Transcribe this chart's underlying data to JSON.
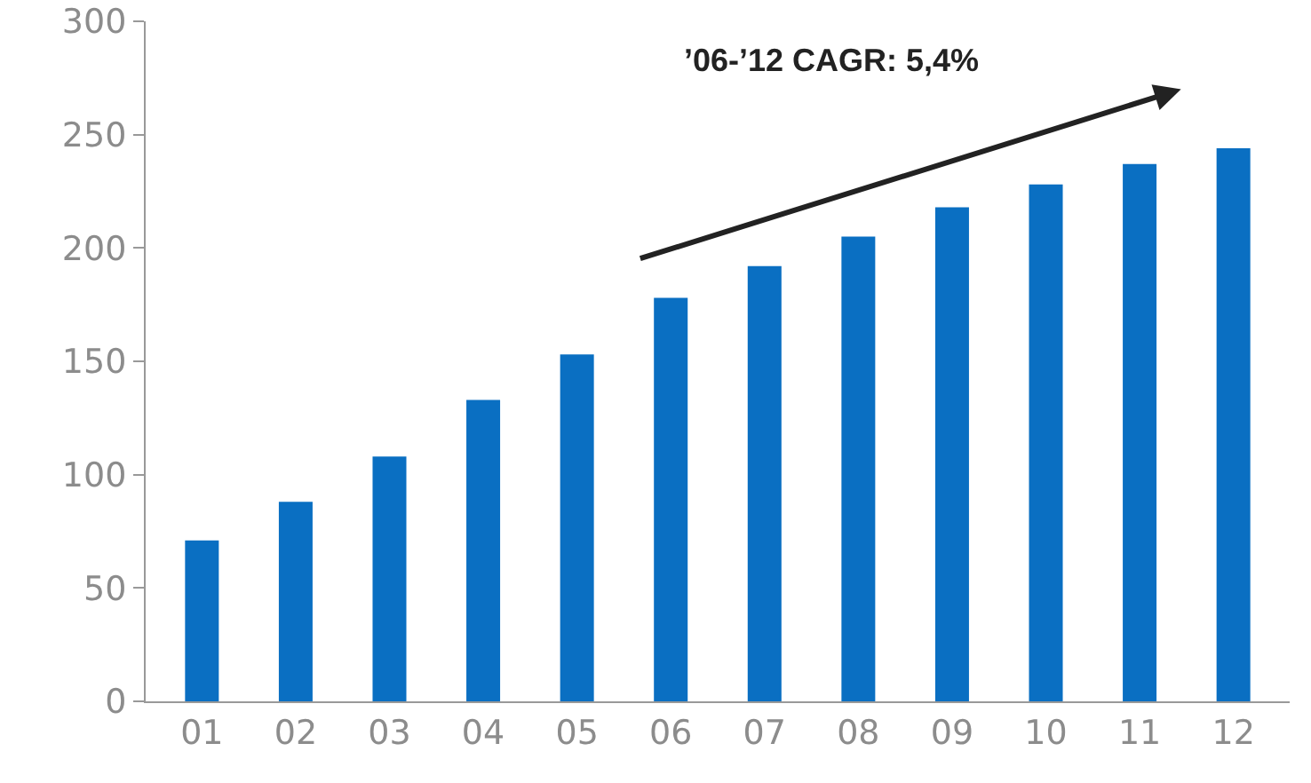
{
  "chart_data": {
    "type": "bar",
    "categories": [
      "01",
      "02",
      "03",
      "04",
      "05",
      "06",
      "07",
      "08",
      "09",
      "10",
      "11",
      "12"
    ],
    "values": [
      71,
      88,
      108,
      133,
      153,
      178,
      192,
      205,
      218,
      228,
      237,
      244
    ],
    "color": "#0a6fc2",
    "ylim": [
      0,
      300
    ],
    "yticks": [
      0,
      50,
      100,
      150,
      200,
      250,
      300
    ],
    "grid": false,
    "annotations": [
      "’06-’12 CAGR: 5,4%"
    ]
  }
}
